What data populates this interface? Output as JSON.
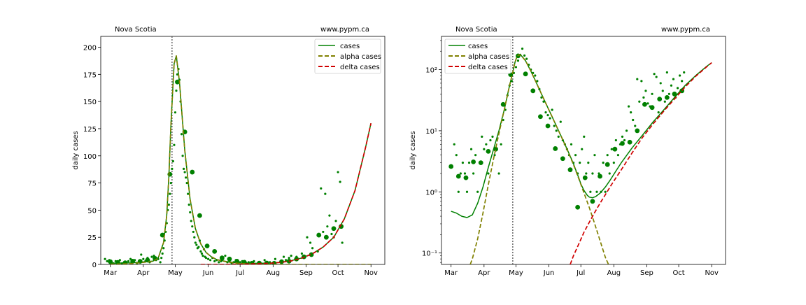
{
  "chart_data": [
    {
      "type": "line",
      "scale": "linear",
      "header_left": "Nova Scotia",
      "header_right": "www.pypm.ca",
      "ylabel": "daily cases",
      "xlabel": "",
      "x_ticks": [
        "Mar",
        "Apr",
        "May",
        "Jun",
        "Jul",
        "Aug",
        "Sep",
        "Oct",
        "Nov"
      ],
      "x_tick_days": [
        0,
        31,
        61,
        92,
        122,
        153,
        184,
        214,
        245
      ],
      "xlim_days": [
        -9,
        258
      ],
      "x_unit": "day of 2021 counted from Mar 1",
      "y_ticks": [
        0,
        25,
        50,
        75,
        100,
        125,
        150,
        175,
        200
      ],
      "ylim": [
        0,
        210
      ],
      "vline_day": 58,
      "legend": {
        "position": "top-right",
        "entries": [
          "cases",
          "alpha cases",
          "delta cases"
        ]
      },
      "series": [
        {
          "name": "cases",
          "color": "#008000",
          "style": "solid",
          "x": [
            0,
            20,
            40,
            45,
            50,
            53,
            55,
            57,
            60,
            62,
            65,
            70,
            75,
            80,
            85,
            90,
            95,
            100,
            110,
            120,
            130,
            140,
            150,
            160,
            170,
            180,
            190,
            200,
            210,
            220,
            230,
            240,
            245
          ],
          "y": [
            1,
            1.5,
            3,
            6,
            20,
            45,
            80,
            130,
            185,
            192,
            168,
            105,
            60,
            33,
            19,
            11,
            7,
            4.5,
            2.5,
            1.4,
            1.0,
            1.0,
            1.2,
            2,
            3.5,
            6,
            10,
            16,
            25,
            42,
            68,
            108,
            130
          ]
        },
        {
          "name": "alpha cases",
          "color": "#808000",
          "style": "dashed",
          "x": [
            0,
            20,
            40,
            45,
            50,
            53,
            55,
            57,
            60,
            62,
            65,
            70,
            75,
            80,
            85,
            90,
            95,
            100,
            110,
            120,
            130,
            140,
            150,
            160,
            175,
            200,
            245
          ],
          "y": [
            0.2,
            0.8,
            2.8,
            5.8,
            20,
            45,
            80,
            130,
            185,
            192,
            168,
            105,
            60,
            33,
            19,
            11,
            7,
            4.4,
            2.2,
            1.0,
            0.4,
            0.15,
            0.05,
            0.02,
            0,
            0,
            0
          ]
        },
        {
          "name": "delta cases",
          "color": "#d00000",
          "style": "dashed",
          "x": [
            85,
            100,
            110,
            120,
            130,
            140,
            150,
            160,
            170,
            180,
            190,
            200,
            210,
            220,
            230,
            240,
            245
          ],
          "y": [
            0,
            0.05,
            0.1,
            0.2,
            0.4,
            0.7,
            1.1,
            1.8,
            3.2,
            5.8,
            9.8,
            16,
            25,
            42,
            68,
            108,
            130
          ]
        }
      ],
      "daily_points": {
        "x": [
          -5,
          -3,
          -1,
          1,
          3,
          5,
          7,
          9,
          11,
          13,
          15,
          17,
          19,
          21,
          23,
          25,
          27,
          29,
          31,
          33,
          35,
          37,
          39,
          41,
          43,
          45,
          47,
          48,
          49,
          50,
          51,
          52,
          53,
          54,
          55,
          56,
          57,
          58,
          59,
          60,
          61,
          62,
          63,
          64,
          65,
          66,
          67,
          68,
          69,
          70,
          71,
          72,
          73,
          74,
          75,
          76,
          77,
          78,
          79,
          80,
          81,
          82,
          83,
          84,
          85,
          86,
          87,
          88,
          89,
          90,
          92,
          94,
          96,
          98,
          100,
          102,
          104,
          106,
          108,
          110,
          112,
          114,
          116,
          118,
          120,
          122,
          124,
          126,
          128,
          130,
          135,
          140,
          145,
          150,
          155,
          160,
          163,
          165,
          168,
          170,
          175,
          180,
          185,
          188,
          190,
          195,
          198,
          200,
          202,
          204,
          206,
          208,
          210,
          212,
          214,
          216,
          218
        ],
        "y": [
          5,
          3,
          4,
          2,
          1,
          3,
          2,
          4,
          1,
          2,
          1,
          3,
          5,
          2,
          4,
          1,
          3,
          9,
          5,
          3,
          6,
          2,
          7,
          8,
          4,
          5,
          2,
          6,
          10,
          15,
          22,
          30,
          38,
          50,
          55,
          65,
          75,
          88,
          95,
          110,
          140,
          160,
          175,
          180,
          170,
          150,
          120,
          100,
          88,
          85,
          80,
          75,
          65,
          55,
          48,
          40,
          35,
          30,
          25,
          20,
          18,
          15,
          16,
          22,
          12,
          10,
          8,
          14,
          7,
          6,
          5,
          4,
          6,
          3,
          4,
          2,
          3,
          5,
          8,
          2,
          3,
          1,
          2,
          4,
          1,
          2,
          3,
          1,
          1,
          2,
          3,
          1,
          4,
          2,
          5,
          3,
          7,
          4,
          6,
          8,
          7,
          10,
          25,
          20,
          15,
          12,
          70,
          30,
          65,
          35,
          45,
          28,
          25,
          40,
          85,
          76,
          20
        ],
        "color": "#008000"
      },
      "weekly_points": {
        "x": [
          0,
          7,
          14,
          21,
          28,
          35,
          42,
          49,
          56,
          63,
          70,
          77,
          84,
          91,
          98,
          105,
          112,
          119,
          126,
          133,
          140,
          147,
          154,
          161,
          168,
          175,
          182,
          189,
          196,
          203,
          210,
          217
        ],
        "y": [
          2.5,
          1.8,
          1.5,
          3.0,
          2.8,
          4.0,
          5.5,
          27,
          83,
          168,
          122,
          85,
          45,
          17,
          12,
          6,
          5,
          3,
          2,
          1,
          1.2,
          1.3,
          1.0,
          2.5,
          3,
          5,
          7,
          9,
          27,
          25,
          33,
          35
        ],
        "color": "#008000"
      }
    },
    {
      "type": "line",
      "scale": "log",
      "header_left": "Nova Scotia",
      "header_right": "www.pypm.ca",
      "ylabel": "daily cases",
      "xlabel": "",
      "x_ticks": [
        "Mar",
        "Apr",
        "May",
        "Jun",
        "Jul",
        "Aug",
        "Sep",
        "Oct",
        "Nov"
      ],
      "x_tick_days": [
        0,
        31,
        61,
        92,
        122,
        153,
        184,
        214,
        245
      ],
      "xlim_days": [
        -9,
        258
      ],
      "x_unit": "day of 2021 counted from Mar 1",
      "y_ticks": [
        "10⁻¹",
        "10⁰",
        "10¹",
        "10²"
      ],
      "y_tick_values": [
        0.1,
        1,
        10,
        100
      ],
      "ylim": [
        0.065,
        350
      ],
      "vline_day": 58,
      "legend": {
        "position": "top-left",
        "entries": [
          "cases",
          "alpha cases",
          "delta cases"
        ]
      },
      "series": [
        {
          "name": "cases",
          "color": "#008000",
          "style": "solid",
          "x": [
            0,
            5,
            10,
            15,
            20,
            25,
            30,
            35,
            40,
            45,
            50,
            55,
            58,
            60,
            62,
            64,
            66,
            70,
            75,
            80,
            85,
            90,
            95,
            100,
            105,
            110,
            115,
            118,
            120,
            122,
            125,
            128,
            130,
            133,
            136,
            140,
            145,
            150,
            155,
            160,
            170,
            180,
            190,
            200,
            210,
            220,
            230,
            240,
            245
          ],
          "y": [
            0.48,
            0.45,
            0.4,
            0.38,
            0.42,
            0.65,
            1.2,
            2.5,
            5,
            10,
            22,
            55,
            90,
            130,
            165,
            175,
            170,
            140,
            95,
            62,
            40,
            26,
            17,
            11,
            7.2,
            4.6,
            2.9,
            2.1,
            1.7,
            1.35,
            1.05,
            0.88,
            0.82,
            0.8,
            0.84,
            0.95,
            1.2,
            1.6,
            2.2,
            3.0,
            5.2,
            8.5,
            14,
            22,
            35,
            55,
            80,
            112,
            130
          ]
        },
        {
          "name": "alpha cases",
          "color": "#808000",
          "style": "dashed",
          "x": [
            18,
            20,
            25,
            30,
            35,
            40,
            45,
            50,
            55,
            58,
            60,
            62,
            64,
            66,
            70,
            75,
            80,
            85,
            90,
            95,
            100,
            105,
            110,
            115,
            120,
            125,
            130,
            135,
            140,
            145,
            148
          ],
          "y": [
            0.065,
            0.08,
            0.17,
            0.45,
            1.3,
            3.5,
            9,
            22,
            55,
            90,
            130,
            165,
            175,
            170,
            140,
            95,
            62,
            40,
            26,
            17,
            11,
            7.1,
            4.5,
            2.8,
            1.65,
            0.95,
            0.55,
            0.3,
            0.16,
            0.085,
            0.065
          ]
        },
        {
          "name": "delta cases",
          "color": "#d00000",
          "style": "dashed",
          "x": [
            112,
            115,
            120,
            125,
            130,
            135,
            140,
            145,
            150,
            155,
            160,
            170,
            180,
            190,
            200,
            210,
            220,
            230,
            240,
            245
          ],
          "y": [
            0.065,
            0.09,
            0.14,
            0.22,
            0.32,
            0.46,
            0.65,
            0.9,
            1.25,
            1.7,
            2.3,
            4.3,
            7.8,
            13,
            21,
            33,
            52,
            78,
            110,
            130
          ]
        }
      ],
      "daily_points": {
        "x": [
          3,
          5,
          7,
          9,
          11,
          13,
          15,
          17,
          19,
          21,
          23,
          25,
          27,
          29,
          31,
          33,
          35,
          37,
          39,
          41,
          43,
          45,
          47,
          49,
          51,
          53,
          55,
          57,
          59,
          61,
          63,
          65,
          67,
          69,
          71,
          73,
          75,
          77,
          79,
          81,
          83,
          85,
          87,
          89,
          91,
          93,
          95,
          97,
          99,
          101,
          103,
          105,
          107,
          109,
          111,
          113,
          115,
          117,
          119,
          121,
          123,
          125,
          127,
          129,
          131,
          133,
          135,
          137,
          139,
          141,
          143,
          145,
          147,
          149,
          151,
          153,
          155,
          157,
          159,
          161,
          163,
          165,
          167,
          169,
          171,
          173,
          175,
          177,
          179,
          181,
          183,
          185,
          187,
          189,
          191,
          193,
          195,
          197,
          199,
          201,
          203,
          205,
          207,
          209,
          211,
          213,
          215,
          217,
          219
        ],
        "y": [
          6,
          4,
          1,
          2,
          3,
          2,
          1,
          3,
          5,
          2,
          4,
          1,
          3,
          8,
          5,
          6,
          2,
          7,
          8,
          4,
          5,
          2,
          6,
          15,
          22,
          38,
          55,
          65,
          88,
          110,
          140,
          175,
          220,
          170,
          150,
          120,
          100,
          88,
          80,
          65,
          48,
          35,
          30,
          20,
          18,
          16,
          22,
          12,
          10,
          8,
          14,
          7,
          6,
          5,
          4,
          6,
          3,
          4,
          2,
          3,
          5,
          8,
          2,
          3,
          1,
          2,
          4,
          1,
          2,
          1,
          3,
          1,
          4,
          2,
          5,
          3,
          7,
          4,
          6,
          8,
          7,
          10,
          25,
          20,
          15,
          12,
          70,
          30,
          65,
          35,
          45,
          28,
          25,
          40,
          85,
          76,
          20,
          60,
          45,
          30,
          90,
          40,
          55,
          70,
          35,
          50,
          80,
          65,
          90
        ],
        "color": "#008000"
      },
      "weekly_points": {
        "x": [
          0,
          7,
          14,
          21,
          28,
          35,
          42,
          49,
          56,
          63,
          70,
          77,
          84,
          91,
          98,
          105,
          112,
          119,
          126,
          133,
          140,
          147,
          154,
          161,
          168,
          175,
          182,
          189,
          196,
          203,
          210,
          217
        ],
        "y": [
          2.6,
          1.8,
          1.7,
          3.1,
          3.0,
          4.6,
          5.0,
          27,
          83,
          168,
          85,
          45,
          17,
          12,
          5.1,
          3.5,
          2.3,
          0.56,
          1.7,
          0.7,
          1.8,
          2.8,
          5.0,
          6.2,
          6.5,
          10,
          27,
          24,
          33,
          35,
          40,
          45
        ],
        "color": "#008000"
      }
    }
  ]
}
